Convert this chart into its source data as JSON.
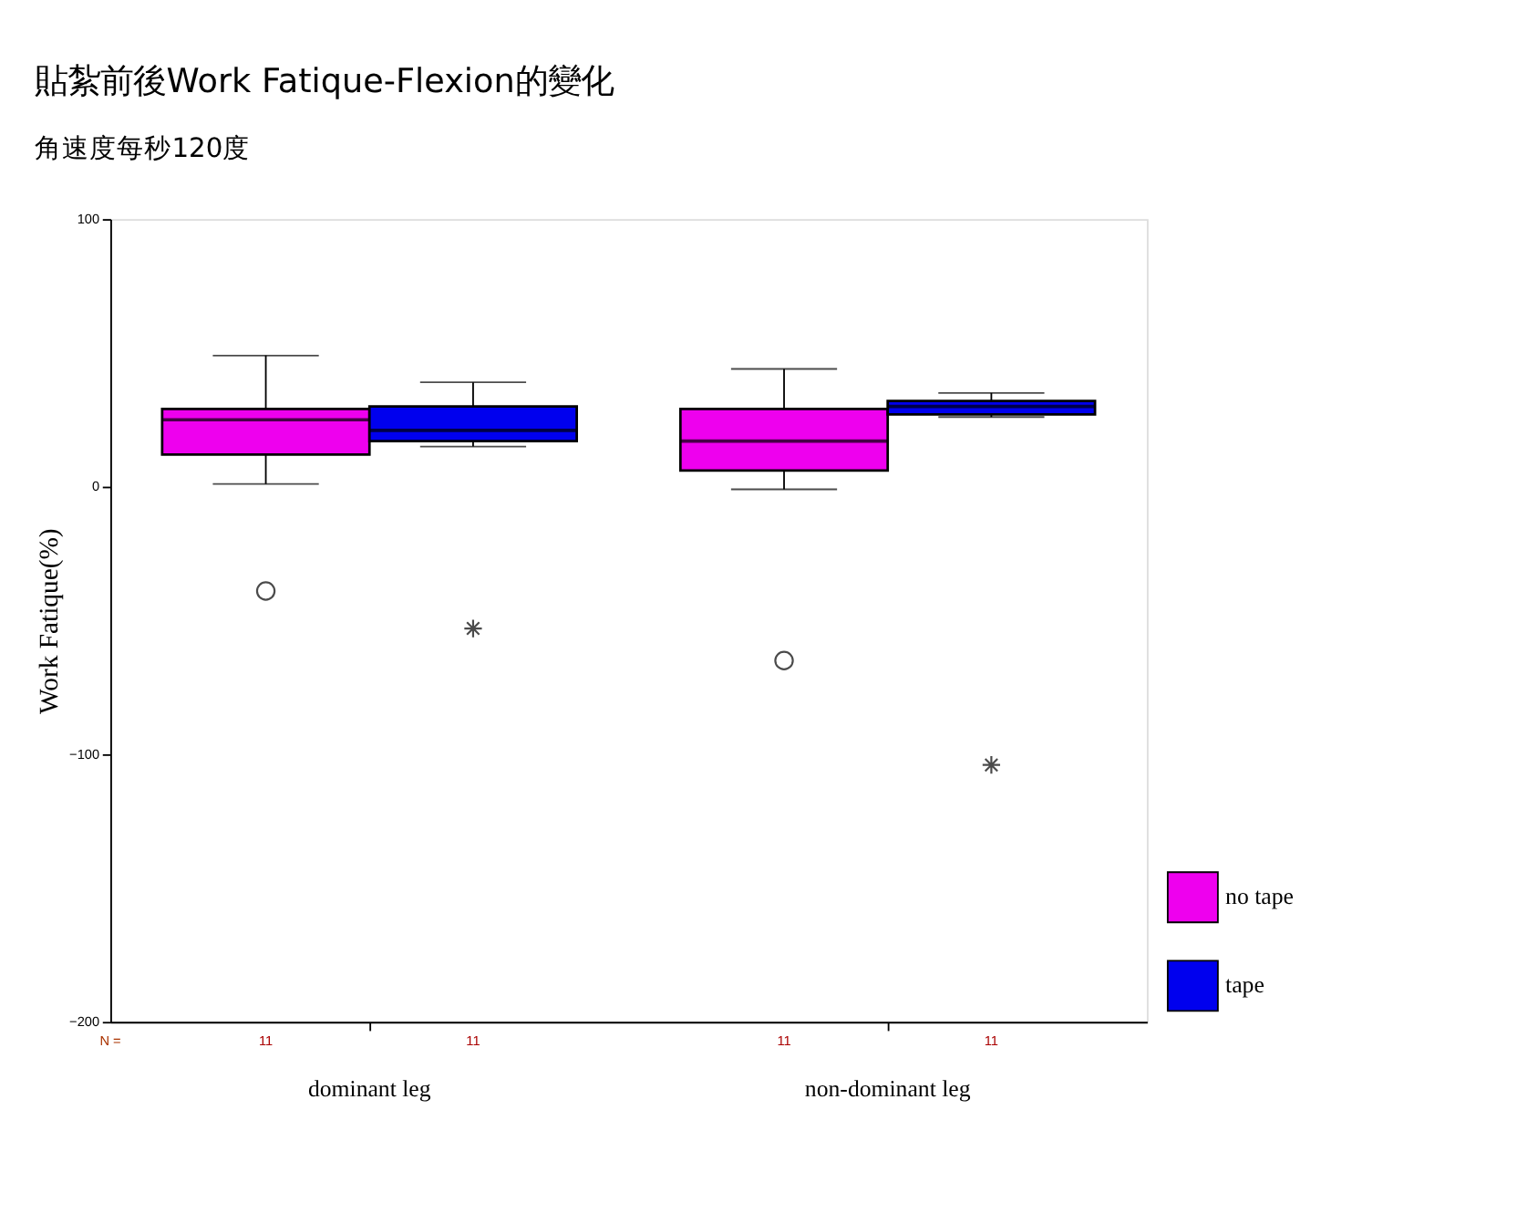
{
  "chart_data": {
    "type": "box",
    "title": "貼紮前後Work Fatique-Flexion的變化",
    "subtitle": "角速度每秒120度",
    "ylabel": "Work Fatique(%)",
    "categories": [
      "dominant leg",
      "non-dominant leg"
    ],
    "series": [
      {
        "name": "no tape",
        "color": "#ee00ee",
        "marker": "circle",
        "boxes": [
          {
            "low": 1,
            "q1": 12,
            "median": 25,
            "q3": 29,
            "high": 49,
            "outliers": [
              -39
            ]
          },
          {
            "low": -1,
            "q1": 6,
            "median": 17,
            "q3": 29,
            "high": 44,
            "outliers": [
              -65
            ]
          }
        ]
      },
      {
        "name": "tape",
        "color": "#0000ee",
        "marker": "star",
        "boxes": [
          {
            "low": 15,
            "q1": 17,
            "median": 21,
            "q3": 30,
            "high": 39,
            "outliers": [
              -53
            ]
          },
          {
            "low": 26,
            "q1": 27,
            "median": 30,
            "q3": 32,
            "high": 35,
            "outliers": [
              -104
            ]
          }
        ]
      }
    ],
    "annotations": [
      "N =",
      "11",
      "11",
      "11",
      "11"
    ],
    "ylim": [
      -200,
      100
    ],
    "yticks": [
      -200,
      -100,
      0,
      100
    ],
    "grid": false,
    "legend": "bottom right"
  }
}
